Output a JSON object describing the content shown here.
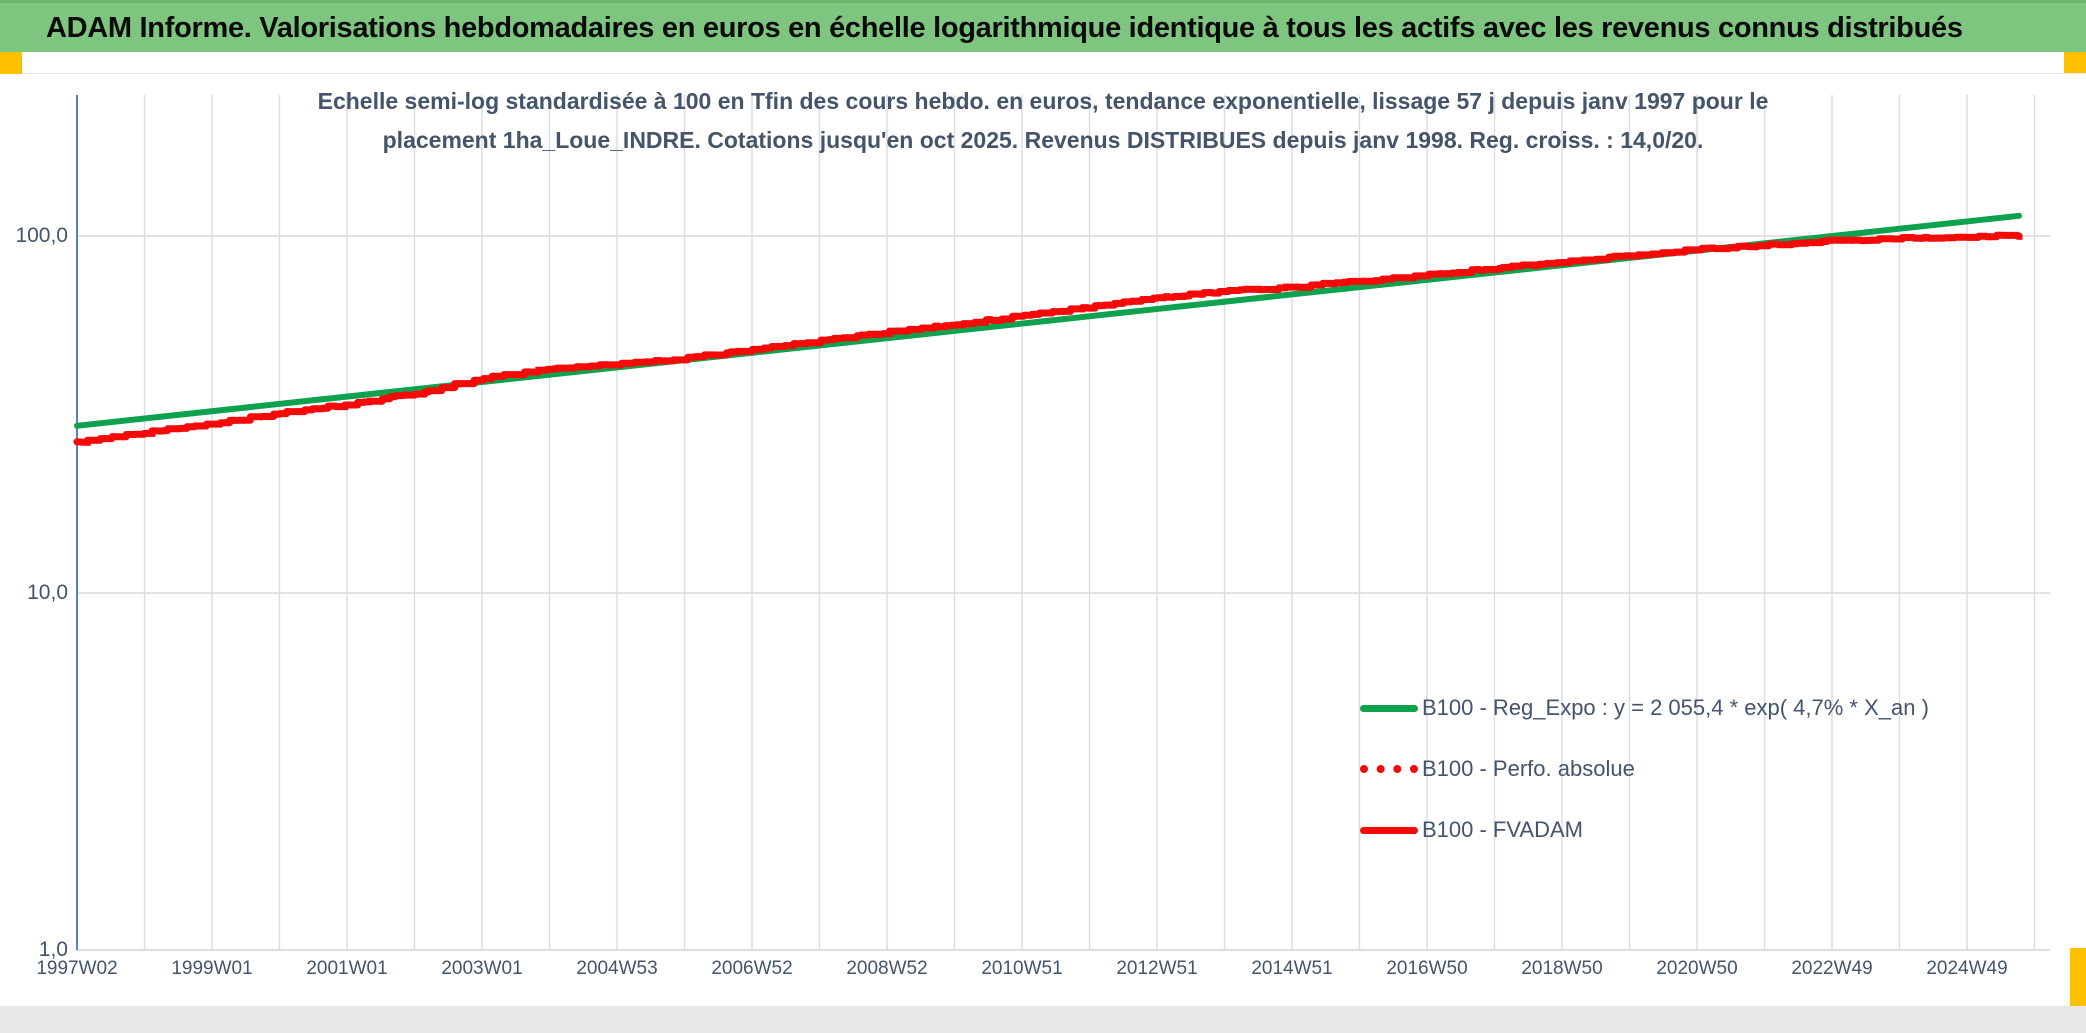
{
  "header": {
    "title": "ADAM Informe. Valorisations hebdomadaires en euros en échelle logarithmique identique à tous les actifs avec les revenus connus distribués",
    "bar_color": "#7EC67F",
    "corner_marker_color": "#FFC000"
  },
  "subtitle": {
    "line1": "Echelle semi-log standardisée à 100 en Tfin des cours hebdo. en euros, tendance exponentielle, lissage 57 j depuis janv 1997 pour le",
    "line2": "placement 1ha_Loue_INDRE. Cotations jusqu'en oct 2025. Revenus DISTRIBUES depuis janv 1998. Reg. croiss. : 14,0/20."
  },
  "legend": {
    "items": [
      {
        "label": "B100 - Reg_Expo : y = 2 055,4 * exp( 4,7% *  X_an )",
        "color": "#0EA24E",
        "style": "solid"
      },
      {
        "label": "B100 - Perfo. absolue",
        "color": "#F50A0A",
        "style": "dotted"
      },
      {
        "label": "B100 - FVADAM",
        "color": "#F50A0A",
        "style": "solid"
      }
    ]
  },
  "chart_data": {
    "type": "line",
    "title": "Echelle semi-log standardisée à 100 en Tfin des cours hebdo. en euros, tendance exponentielle, lissage 57 j depuis janv 1997 pour le placement 1ha_Loue_INDRE. Cotations jusqu'en oct 2025. Revenus DISTRIBUES depuis janv 1998. Reg. croiss. : 14,0/20.",
    "y_scale": "log",
    "ylim": [
      1,
      250
    ],
    "x_range_years": [
      1997.03,
      2025.8
    ],
    "y_gridline_values": [
      100,
      10,
      1
    ],
    "y_tick_labels": [
      "100,0",
      "10,0",
      "1,0"
    ],
    "x_tick_labels": [
      "1997W02",
      "1999W01",
      "2001W01",
      "2003W01",
      "2004W53",
      "2006W52",
      "2008W52",
      "2010W51",
      "2012W51",
      "2014W51",
      "2016W50",
      "2018W50",
      "2020W50",
      "2022W49",
      "2024W49"
    ],
    "x_tick_spacing_years": 2,
    "minor_x_gridline_spacing_years": 1,
    "grid_color": "#D9D9D9",
    "y_axis_color": "#4472C4",
    "legend_position": "inside-lower-right",
    "series": [
      {
        "name": "B100 - Reg_Expo",
        "color": "#0EA24E",
        "style": "solid",
        "width": 6,
        "formula": "y = 2 055,4 * exp( 4,7% *  X_an )",
        "annual_growth_pct": 4.7,
        "points": [
          [
            1997.03,
            29.4
          ],
          [
            2025.8,
            113.9
          ]
        ]
      },
      {
        "name": "B100 - Perfo. absolue",
        "color": "#F50A0A",
        "style": "dotted",
        "width": 7,
        "points_same_as": "B100 - FVADAM",
        "note": "dotted curve coincides with B100 - FVADAM and is hidden beneath it"
      },
      {
        "name": "B100 - FVADAM",
        "color": "#F50A0A",
        "style": "solid",
        "width": 7,
        "render": "staircase",
        "points": [
          [
            1997.03,
            26.5
          ],
          [
            1998,
            28.1
          ],
          [
            1999,
            29.8
          ],
          [
            2000,
            31.8
          ],
          [
            2001,
            33.7
          ],
          [
            2002,
            36.1
          ],
          [
            2003,
            39.8
          ],
          [
            2004,
            42.3
          ],
          [
            2005,
            43.7
          ],
          [
            2006,
            45.3
          ],
          [
            2007,
            48.0
          ],
          [
            2008,
            50.8
          ],
          [
            2009,
            53.7
          ],
          [
            2010,
            56.4
          ],
          [
            2011,
            59.6
          ],
          [
            2012,
            63.1
          ],
          [
            2013,
            66.8
          ],
          [
            2014,
            70.0
          ],
          [
            2015,
            71.9
          ],
          [
            2016,
            74.7
          ],
          [
            2017,
            77.6
          ],
          [
            2018,
            81.0
          ],
          [
            2019,
            84.4
          ],
          [
            2020,
            88.0
          ],
          [
            2021,
            91.8
          ],
          [
            2022,
            94.2
          ],
          [
            2023,
            96.8
          ],
          [
            2024,
            98.4
          ],
          [
            2025,
            99.6
          ],
          [
            2025.8,
            100.0
          ]
        ]
      }
    ]
  }
}
